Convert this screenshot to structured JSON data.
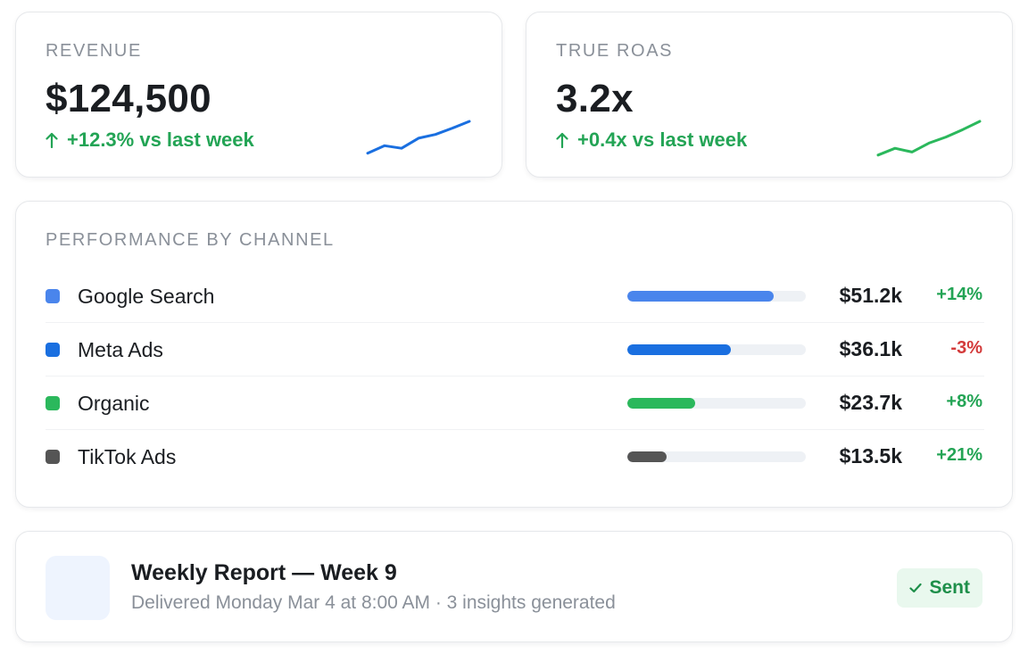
{
  "colors": {
    "positive": "#23a455",
    "negative": "#d33a3a",
    "revenue_line": "#1a6fe0",
    "roas_line": "#2bb85c"
  },
  "kpis": {
    "revenue": {
      "label": "REVENUE",
      "value": "$124,500",
      "delta": "+12.3% vs last week",
      "icon": "arrow-up-icon",
      "trend": [
        0.15,
        0.35,
        0.28,
        0.55,
        0.65,
        0.82,
        1.0
      ]
    },
    "roas": {
      "label": "TRUE ROAS",
      "value": "3.2x",
      "delta": "+0.4x vs last week",
      "icon": "arrow-up-icon",
      "trend": [
        0.1,
        0.28,
        0.18,
        0.42,
        0.58,
        0.78,
        1.0
      ]
    }
  },
  "channels": {
    "title": "PERFORMANCE BY CHANNEL",
    "rows": [
      {
        "label": "Google Search",
        "value": "$51.2k",
        "change": "+14%",
        "positive": true,
        "share": 0.82,
        "color": "#4a85ec"
      },
      {
        "label": "Meta Ads",
        "value": "$36.1k",
        "change": "-3%",
        "positive": false,
        "share": 0.58,
        "color": "#1a6fe0"
      },
      {
        "label": "Organic",
        "value": "$23.7k",
        "change": "+8%",
        "positive": true,
        "share": 0.38,
        "color": "#2bb85c"
      },
      {
        "label": "TikTok Ads",
        "value": "$13.5k",
        "change": "+21%",
        "positive": true,
        "share": 0.22,
        "color": "#555555"
      }
    ]
  },
  "report": {
    "title": "Weekly Report — Week 9",
    "subtitle": "Delivered Monday Mar 4 at 8:00 AM · 3 insights generated",
    "status": "Sent",
    "status_icon": "check-icon"
  }
}
